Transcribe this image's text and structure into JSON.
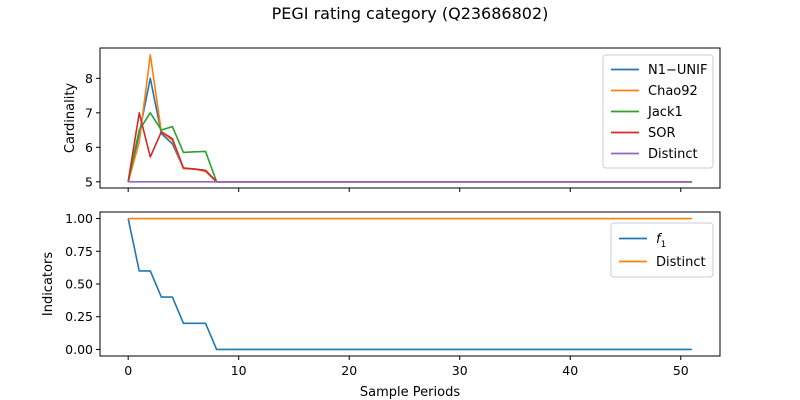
{
  "chart_data": [
    {
      "type": "line",
      "title": "PEGI rating category (Q23686802)",
      "ylabel": "Cardinality",
      "xlim": [
        -2.55,
        53.55
      ],
      "ylim": [
        4.82,
        8.88
      ],
      "yticks": [
        5,
        6,
        7,
        8
      ],
      "xticks": [
        0,
        10,
        20,
        30,
        40,
        50
      ],
      "legend_position": "upper right",
      "series": [
        {
          "name": "N1−UNIF",
          "color": "#1f77b4",
          "x": [
            0,
            1,
            2,
            3,
            4,
            5,
            6,
            7,
            8,
            51
          ],
          "y": [
            5.0,
            6.4,
            8.0,
            6.4,
            6.1,
            5.4,
            5.37,
            5.33,
            5.0,
            5.0
          ]
        },
        {
          "name": "Chao92",
          "color": "#ff7f0e",
          "x": [
            0,
            1,
            2,
            3,
            4,
            5,
            6,
            7,
            8,
            51
          ],
          "y": [
            5.0,
            6.15,
            8.68,
            6.45,
            6.2,
            5.38,
            5.37,
            5.3,
            5.0,
            5.0
          ]
        },
        {
          "name": "Jack1",
          "color": "#2ca02c",
          "x": [
            0,
            1,
            2,
            3,
            4,
            5,
            6,
            7,
            8,
            51
          ],
          "y": [
            5.0,
            6.5,
            7.0,
            6.5,
            6.6,
            5.85,
            5.87,
            5.88,
            5.0,
            5.0
          ]
        },
        {
          "name": "SOR",
          "color": "#d62728",
          "x": [
            0,
            1,
            2,
            3,
            4,
            5,
            6,
            7,
            8,
            51
          ],
          "y": [
            5.0,
            7.0,
            5.72,
            6.45,
            6.25,
            5.4,
            5.37,
            5.33,
            5.0,
            5.0
          ]
        },
        {
          "name": "Distinct",
          "color": "#9467bd",
          "x": [
            0,
            51
          ],
          "y": [
            5.0,
            5.0
          ]
        }
      ]
    },
    {
      "type": "line",
      "xlabel": "Sample Periods",
      "ylabel": "Indicators",
      "xlim": [
        -2.55,
        53.55
      ],
      "ylim": [
        -0.05,
        1.05
      ],
      "yticks": [
        0.0,
        0.25,
        0.5,
        0.75,
        1.0
      ],
      "ytick_labels": [
        "0.00",
        "0.25",
        "0.50",
        "0.75",
        "1.00"
      ],
      "xticks": [
        0,
        10,
        20,
        30,
        40,
        50
      ],
      "legend_position": "upper right",
      "series": [
        {
          "name": "f1",
          "legend_base": "f",
          "legend_sub": "1",
          "color": "#1f77b4",
          "x": [
            0,
            1,
            2,
            3,
            4,
            5,
            6,
            7,
            8,
            51
          ],
          "y": [
            1.0,
            0.6,
            0.6,
            0.4,
            0.4,
            0.2,
            0.2,
            0.2,
            0.0,
            0.0
          ]
        },
        {
          "name": "Distinct",
          "color": "#ff7f0e",
          "x": [
            0,
            51
          ],
          "y": [
            1.0,
            1.0
          ]
        }
      ]
    }
  ]
}
